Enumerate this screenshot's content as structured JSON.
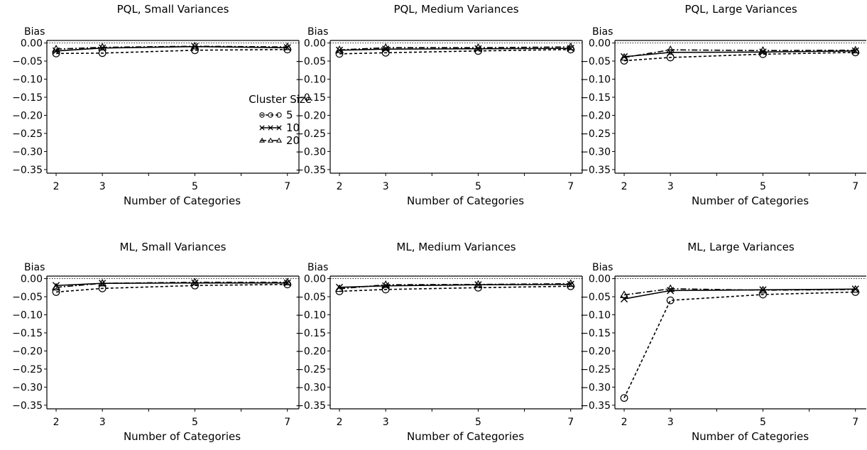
{
  "figure": {
    "legend": {
      "title": "Cluster Size",
      "entries": [
        "5",
        "10",
        "20"
      ]
    }
  },
  "chart_data": [
    {
      "type": "line",
      "title": "PQL, Small Variances",
      "xlabel": "Number of Categories",
      "ylabel": "Bias",
      "x": [
        2,
        3,
        5,
        7
      ],
      "x_ticks": [
        "2",
        "3",
        "5",
        "7"
      ],
      "y_ticks": [
        "0.00",
        "-0.05",
        "-0.10",
        "-0.15",
        "-0.20",
        "-0.25",
        "-0.30",
        "-0.35"
      ],
      "xlim": [
        1.8,
        7.25
      ],
      "ylim": [
        -0.36,
        0.007
      ],
      "reference_line": 0,
      "legend": true,
      "legend_placement": "right",
      "series": [
        {
          "name": "5",
          "marker": "circle",
          "style": "dashed",
          "values": [
            -0.029,
            -0.028,
            -0.02,
            -0.018
          ]
        },
        {
          "name": "10",
          "marker": "x",
          "style": "solid",
          "values": [
            -0.022,
            -0.014,
            -0.01,
            -0.013
          ]
        },
        {
          "name": "20",
          "marker": "triangle",
          "style": "dashdot",
          "values": [
            -0.017,
            -0.012,
            -0.009,
            -0.011
          ]
        }
      ]
    },
    {
      "type": "line",
      "title": "PQL, Medium Variances",
      "xlabel": "Number of Categories",
      "ylabel": "Bias",
      "x": [
        2,
        3,
        5,
        7
      ],
      "x_ticks": [
        "2",
        "3",
        "5",
        "7"
      ],
      "y_ticks": [
        "0.00",
        "-0.05",
        "-0.10",
        "-0.15",
        "-0.20",
        "-0.25",
        "-0.30",
        "-0.35"
      ],
      "xlim": [
        1.8,
        7.25
      ],
      "ylim": [
        -0.36,
        0.007
      ],
      "reference_line": 0,
      "legend": false,
      "series": [
        {
          "name": "5",
          "marker": "circle",
          "style": "dashed",
          "values": [
            -0.03,
            -0.027,
            -0.022,
            -0.018
          ]
        },
        {
          "name": "10",
          "marker": "x",
          "style": "solid",
          "values": [
            -0.02,
            -0.017,
            -0.016,
            -0.015
          ]
        },
        {
          "name": "20",
          "marker": "triangle",
          "style": "dashdot",
          "values": [
            -0.019,
            -0.013,
            -0.013,
            -0.011
          ]
        }
      ]
    },
    {
      "type": "line",
      "title": "PQL, Large Variances",
      "xlabel": "Number of Categories",
      "ylabel": "Bias",
      "x": [
        2,
        3,
        5,
        7
      ],
      "x_ticks": [
        "2",
        "3",
        "5",
        "7"
      ],
      "y_ticks": [
        "0.00",
        "-0.05",
        "-0.10",
        "-0.15",
        "-0.20",
        "-0.25",
        "-0.30",
        "-0.35"
      ],
      "xlim": [
        1.8,
        7.25
      ],
      "ylim": [
        -0.36,
        0.007
      ],
      "reference_line": 0,
      "legend": false,
      "series": [
        {
          "name": "5",
          "marker": "circle",
          "style": "dashed",
          "values": [
            -0.049,
            -0.04,
            -0.031,
            -0.026
          ]
        },
        {
          "name": "10",
          "marker": "x",
          "style": "solid",
          "values": [
            -0.038,
            -0.026,
            -0.025,
            -0.022
          ]
        },
        {
          "name": "20",
          "marker": "triangle",
          "style": "dashdot",
          "values": [
            -0.04,
            -0.019,
            -0.021,
            -0.02
          ]
        }
      ]
    },
    {
      "type": "line",
      "title": "ML, Small Variances",
      "xlabel": "Number of Categories",
      "ylabel": "Bias",
      "x": [
        2,
        3,
        5,
        7
      ],
      "x_ticks": [
        "2",
        "3",
        "5",
        "7"
      ],
      "y_ticks": [
        "0.00",
        "-0.05",
        "-0.10",
        "-0.15",
        "-0.20",
        "-0.25",
        "-0.30",
        "-0.35"
      ],
      "xlim": [
        1.8,
        7.25
      ],
      "ylim": [
        -0.36,
        0.007
      ],
      "reference_line": 0,
      "legend": false,
      "series": [
        {
          "name": "5",
          "marker": "circle",
          "style": "dashed",
          "values": [
            -0.037,
            -0.027,
            -0.019,
            -0.016
          ]
        },
        {
          "name": "10",
          "marker": "x",
          "style": "solid",
          "values": [
            -0.019,
            -0.013,
            -0.012,
            -0.012
          ]
        },
        {
          "name": "20",
          "marker": "triangle",
          "style": "dashdot",
          "values": [
            -0.024,
            -0.013,
            -0.01,
            -0.01
          ]
        }
      ]
    },
    {
      "type": "line",
      "title": "ML, Medium Variances",
      "xlabel": "Number of Categories",
      "ylabel": "Bias",
      "x": [
        2,
        3,
        5,
        7
      ],
      "x_ticks": [
        "2",
        "3",
        "5",
        "7"
      ],
      "y_ticks": [
        "0.00",
        "-0.05",
        "-0.10",
        "-0.15",
        "-0.20",
        "-0.25",
        "-0.30",
        "-0.35"
      ],
      "xlim": [
        1.8,
        7.25
      ],
      "ylim": [
        -0.36,
        0.007
      ],
      "reference_line": 0,
      "legend": false,
      "series": [
        {
          "name": "5",
          "marker": "circle",
          "style": "dashed",
          "values": [
            -0.035,
            -0.03,
            -0.025,
            -0.021
          ]
        },
        {
          "name": "10",
          "marker": "x",
          "style": "solid",
          "values": [
            -0.024,
            -0.02,
            -0.017,
            -0.016
          ]
        },
        {
          "name": "20",
          "marker": "triangle",
          "style": "dashdot",
          "values": [
            -0.028,
            -0.017,
            -0.016,
            -0.014
          ]
        }
      ]
    },
    {
      "type": "line",
      "title": "ML, Large Variances",
      "xlabel": "Number of Categories",
      "ylabel": "Bias",
      "x": [
        2,
        3,
        5,
        7
      ],
      "x_ticks": [
        "2",
        "3",
        "5",
        "7"
      ],
      "y_ticks": [
        "0.00",
        "-0.05",
        "-0.10",
        "-0.15",
        "-0.20",
        "-0.25",
        "-0.30",
        "-0.35"
      ],
      "xlim": [
        1.8,
        7.25
      ],
      "ylim": [
        -0.36,
        0.007
      ],
      "reference_line": 0,
      "legend": false,
      "series": [
        {
          "name": "5",
          "marker": "circle",
          "style": "dashed",
          "values": [
            -0.33,
            -0.06,
            -0.044,
            -0.037
          ]
        },
        {
          "name": "10",
          "marker": "x",
          "style": "solid",
          "values": [
            -0.056,
            -0.033,
            -0.031,
            -0.029
          ]
        },
        {
          "name": "20",
          "marker": "triangle",
          "style": "dashdot",
          "values": [
            -0.045,
            -0.028,
            -0.032,
            -0.03
          ]
        }
      ]
    }
  ]
}
